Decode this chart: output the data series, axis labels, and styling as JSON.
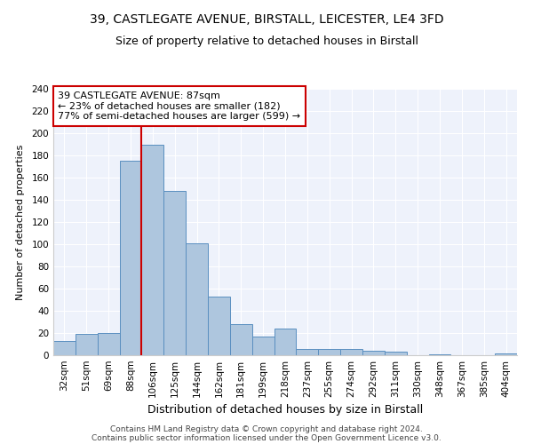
{
  "title1": "39, CASTLEGATE AVENUE, BIRSTALL, LEICESTER, LE4 3FD",
  "title2": "Size of property relative to detached houses in Birstall",
  "xlabel": "Distribution of detached houses by size in Birstall",
  "ylabel": "Number of detached properties",
  "categories": [
    "32sqm",
    "51sqm",
    "69sqm",
    "88sqm",
    "106sqm",
    "125sqm",
    "144sqm",
    "162sqm",
    "181sqm",
    "199sqm",
    "218sqm",
    "237sqm",
    "255sqm",
    "274sqm",
    "292sqm",
    "311sqm",
    "330sqm",
    "348sqm",
    "367sqm",
    "385sqm",
    "404sqm"
  ],
  "values": [
    13,
    19,
    20,
    175,
    190,
    148,
    101,
    53,
    28,
    17,
    24,
    6,
    6,
    6,
    4,
    3,
    0,
    1,
    0,
    0,
    2
  ],
  "bar_color": "#aec6de",
  "bar_edge_color": "#5a8fc0",
  "annotation_line1": "39 CASTLEGATE AVENUE: 87sqm",
  "annotation_line2": "← 23% of detached houses are smaller (182)",
  "annotation_line3": "77% of semi-detached houses are larger (599) →",
  "vline_color": "#cc0000",
  "vline_position": 3.5,
  "annotation_box_color": "#ffffff",
  "annotation_box_edge": "#cc0000",
  "ylim": [
    0,
    240
  ],
  "yticks": [
    0,
    20,
    40,
    60,
    80,
    100,
    120,
    140,
    160,
    180,
    200,
    220,
    240
  ],
  "bg_color": "#eef2fb",
  "footer_line1": "Contains HM Land Registry data © Crown copyright and database right 2024.",
  "footer_line2": "Contains public sector information licensed under the Open Government Licence v3.0.",
  "title1_fontsize": 10,
  "title2_fontsize": 9,
  "xlabel_fontsize": 9,
  "ylabel_fontsize": 8,
  "tick_fontsize": 7.5,
  "annotation_fontsize": 8,
  "footer_fontsize": 6.5
}
